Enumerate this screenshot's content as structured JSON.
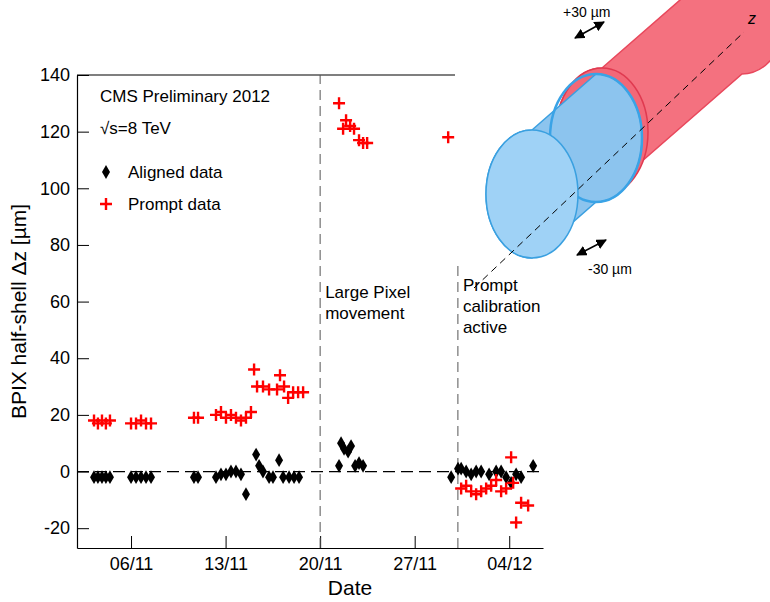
{
  "chart_data": {
    "type": "scatter",
    "title": "CMS Preliminary 2012",
    "subtitle": "√s=8 TeV",
    "x_label": "Date",
    "y_label": "BPIX half-shell Δz [µm]",
    "xlim": [
      2,
      36.5
    ],
    "xticks": [
      {
        "value": 6,
        "label": "06/11"
      },
      {
        "value": 13,
        "label": "13/11"
      },
      {
        "value": 20,
        "label": "20/11"
      },
      {
        "value": 27,
        "label": "27/11"
      },
      {
        "value": 34,
        "label": "04/12"
      }
    ],
    "ylim": [
      -27,
      140
    ],
    "yticks": [
      -20,
      0,
      20,
      40,
      60,
      80,
      100,
      120,
      140
    ],
    "legend": "top-left",
    "hline": 0,
    "series": [
      {
        "name": "Aligned data",
        "color": "#000000",
        "marker": "diamond",
        "x": [
          3.26,
          3.55,
          3.85,
          4.14,
          4.44,
          6.0,
          6.37,
          6.74,
          7.11,
          7.48,
          10.66,
          10.96,
          12.29,
          12.66,
          13.03,
          13.4,
          13.77,
          14.14,
          14.51,
          15.26,
          15.48,
          15.77,
          16.22,
          16.51,
          16.96,
          17.26,
          17.7,
          18.07,
          18.44,
          21.4,
          21.55,
          21.77,
          22.07,
          22.29,
          22.59,
          22.88,
          23.18,
          29.7,
          30.21,
          30.44,
          30.81,
          31.18,
          31.55,
          31.92,
          32.51,
          33.03,
          33.4,
          33.77,
          34.14,
          34.51,
          34.88,
          35.77
        ],
        "values": [
          -2,
          -2,
          -2,
          -2,
          -2,
          -2,
          -2,
          -2,
          -2,
          -2,
          -2,
          -2,
          -2,
          -1,
          -1,
          0,
          0,
          -1,
          -8,
          6,
          2,
          0,
          -2,
          -2,
          4,
          -2,
          -2,
          -2,
          -2,
          2,
          10,
          8,
          7,
          9,
          2,
          3,
          2,
          -2,
          1,
          1,
          0,
          -1,
          0,
          0,
          -1,
          0,
          0,
          -2,
          -4,
          -1,
          -2,
          2
        ]
      },
      {
        "name": "Prompt data",
        "color": "#ff0000",
        "marker": "plus",
        "x": [
          3.26,
          3.55,
          3.85,
          4.14,
          4.44,
          6.0,
          6.37,
          6.74,
          7.11,
          7.48,
          10.66,
          10.96,
          12.29,
          12.66,
          13.03,
          13.4,
          13.77,
          14.14,
          14.51,
          14.88,
          15.11,
          15.33,
          15.77,
          16.22,
          16.81,
          17.03,
          17.33,
          17.63,
          18.0,
          18.37,
          18.74,
          21.4,
          21.7,
          21.92,
          22.22,
          22.51,
          22.88,
          23.18,
          23.48,
          29.48,
          30.44,
          30.81,
          31.18,
          31.55,
          31.92,
          32.29,
          32.66,
          33.03,
          33.4,
          33.77,
          34.14,
          34.29,
          34.51,
          34.88,
          35.4
        ],
        "values": [
          18,
          17,
          18,
          17,
          18,
          17,
          17,
          18,
          17,
          17,
          19,
          19,
          20,
          21,
          19,
          20,
          19,
          18,
          19,
          21,
          36,
          30,
          30,
          29,
          29,
          34,
          30,
          26,
          28,
          28,
          28,
          130,
          121,
          124,
          122,
          121,
          117,
          116,
          116,
          118,
          -6,
          -5,
          -7,
          -8,
          -7,
          -6,
          -5,
          -3,
          -7,
          -6,
          5,
          -4,
          -18,
          -11,
          -12
        ]
      }
    ],
    "annotations": [
      {
        "lines": [
          "Large Pixel",
          "movement"
        ],
        "x": 20
      },
      {
        "lines": [
          "Prompt",
          "calibration",
          "active"
        ],
        "x": 30.2
      }
    ],
    "inset": {
      "top_label": "+30 µm",
      "bottom_label": "-30 µm",
      "axis_label": "z"
    }
  }
}
